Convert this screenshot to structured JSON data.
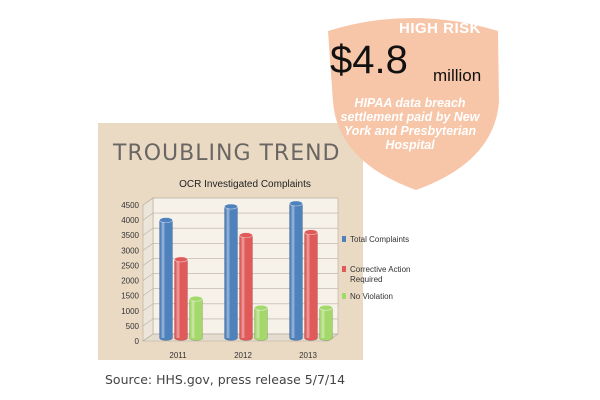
{
  "badge": {
    "risk_label": "HIGH RISK",
    "amount_value": "$4.8",
    "amount_unit": "million",
    "caption": "HIPAA data breach settlement paid by New York and Presbyterian Hospital",
    "color": "#f7c5a8",
    "text_color": "#e88a57"
  },
  "panel_title": "TROUBLING TREND",
  "source": "Source:  HHS.gov,  press release 5/7/14",
  "colors": {
    "panel": "#eadac4",
    "series": [
      "#4f81bd",
      "#e05a5a",
      "#a5d86a"
    ]
  },
  "chart_data": {
    "type": "bar",
    "title": "OCR Investigated Complaints",
    "categories": [
      "2011",
      "2012",
      "2013"
    ],
    "series": [
      {
        "name": "Total Complaints",
        "values": [
          3900,
          4350,
          4450
        ]
      },
      {
        "name": "Corrective Action Required",
        "values": [
          2600,
          3400,
          3500
        ]
      },
      {
        "name": "No Violation",
        "values": [
          1300,
          1000,
          1000
        ]
      }
    ],
    "ylim": [
      0,
      4500
    ],
    "yticks": [
      0,
      500,
      1000,
      1500,
      2000,
      2500,
      3000,
      3500,
      4000,
      4500
    ],
    "grid": true,
    "legend": "right",
    "style": "3d"
  }
}
